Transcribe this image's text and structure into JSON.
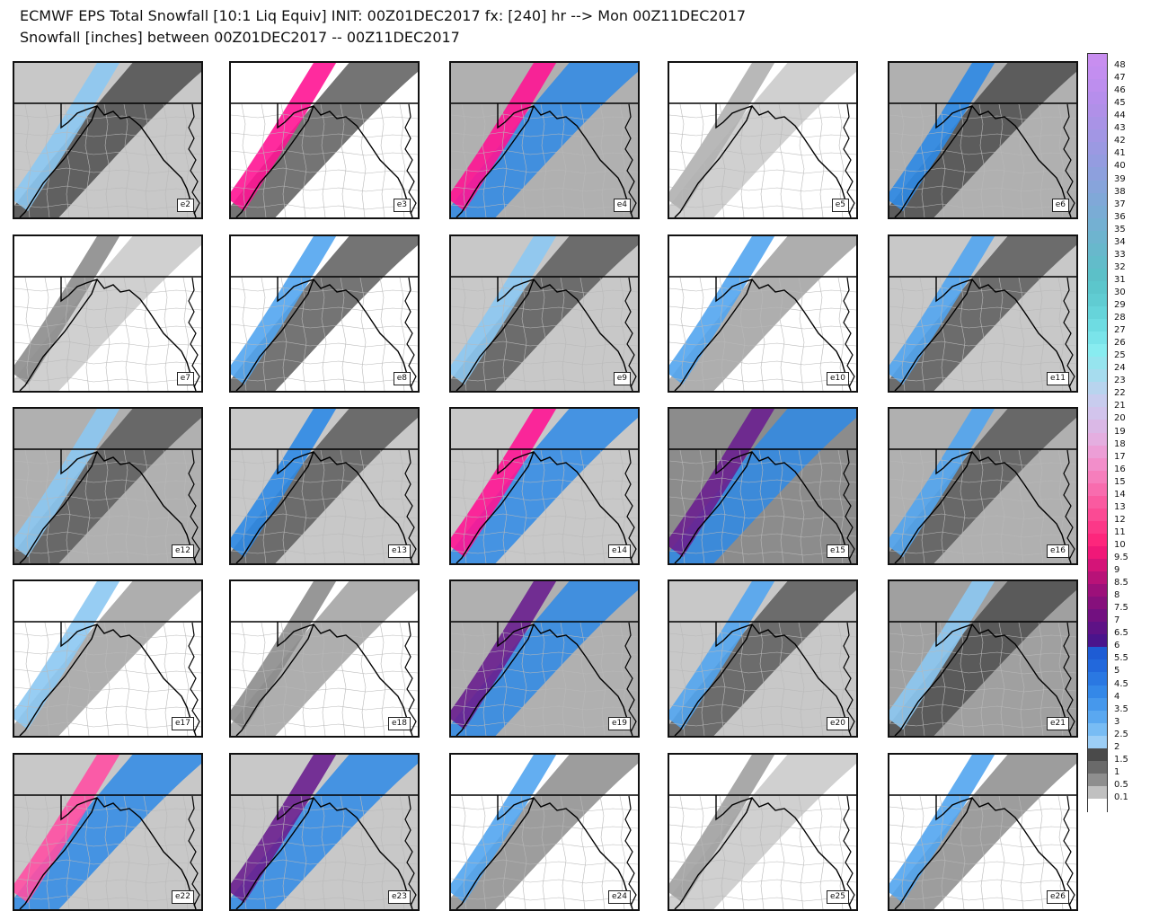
{
  "title_line1": "ECMWF EPS Total Snowfall [10:1 Liq Equiv] INIT: 00Z01DEC2017 fx: [240] hr --> Mon 00Z11DEC2017",
  "title_line2": "Snowfall [inches] between 00Z01DEC2017 -- 00Z11DEC2017",
  "members": [
    "e2",
    "e3",
    "e4",
    "e5",
    "e6",
    "e7",
    "e8",
    "e9",
    "e10",
    "e11",
    "e12",
    "e13",
    "e14",
    "e15",
    "e16",
    "e17",
    "e18",
    "e19",
    "e20",
    "e21",
    "e22",
    "e23",
    "e24",
    "e25",
    "e26"
  ],
  "member_coverage": {
    "e2": {
      "base": "#c8c8c8",
      "band": "#4d4d4d",
      "peak": "#8cc8f2"
    },
    "e3": {
      "base": "#ffffff",
      "band": "#5c5c5c",
      "peak": "#ff1493"
    },
    "e4": {
      "base": "#b0b0b0",
      "band": "#2e8ae6",
      "peak": "#ff1493"
    },
    "e5": {
      "base": "#ffffff",
      "band": "#c8c8c8",
      "peak": "#b0b0b0"
    },
    "e6": {
      "base": "#b0b0b0",
      "band": "#4d4d4d",
      "peak": "#2e8ae6"
    },
    "e7": {
      "base": "#ffffff",
      "band": "#c8c8c8",
      "peak": "#8c8c8c"
    },
    "e8": {
      "base": "#ffffff",
      "band": "#5c5c5c",
      "peak": "#52a5f0"
    },
    "e9": {
      "base": "#c8c8c8",
      "band": "#5c5c5c",
      "peak": "#8cc8f2"
    },
    "e10": {
      "base": "#ffffff",
      "band": "#a0a0a0",
      "peak": "#52a5f0"
    },
    "e11": {
      "base": "#c8c8c8",
      "band": "#5c5c5c",
      "peak": "#52a5f0"
    },
    "e12": {
      "base": "#b0b0b0",
      "band": "#5c5c5c",
      "peak": "#8cc8f2"
    },
    "e13": {
      "base": "#c8c8c8",
      "band": "#5c5c5c",
      "peak": "#2e8ae6"
    },
    "e14": {
      "base": "#c8c8c8",
      "band": "#2e8ae6",
      "peak": "#ff1493"
    },
    "e15": {
      "base": "#8c8c8c",
      "band": "#2e8ae6",
      "peak": "#6a1f8f"
    },
    "e16": {
      "base": "#b0b0b0",
      "band": "#5c5c5c",
      "peak": "#52a5f0"
    },
    "e17": {
      "base": "#ffffff",
      "band": "#a0a0a0",
      "peak": "#8cc8f2"
    },
    "e18": {
      "base": "#ffffff",
      "band": "#a0a0a0",
      "peak": "#8c8c8c"
    },
    "e19": {
      "base": "#b0b0b0",
      "band": "#2e8ae6",
      "peak": "#6a1f8f"
    },
    "e20": {
      "base": "#c8c8c8",
      "band": "#5c5c5c",
      "peak": "#52a5f0"
    },
    "e21": {
      "base": "#a0a0a0",
      "band": "#4d4d4d",
      "peak": "#8cc8f2"
    },
    "e22": {
      "base": "#c8c8c8",
      "band": "#2e8ae6",
      "peak": "#ff4fa3"
    },
    "e23": {
      "base": "#c8c8c8",
      "band": "#2e8ae6",
      "peak": "#6a1f8f"
    },
    "e24": {
      "base": "#ffffff",
      "band": "#8c8c8c",
      "peak": "#52a5f0"
    },
    "e25": {
      "base": "#ffffff",
      "band": "#c8c8c8",
      "peak": "#a0a0a0"
    },
    "e26": {
      "base": "#ffffff",
      "band": "#8c8c8c",
      "peak": "#52a5f0"
    }
  },
  "legend": [
    {
      "label": "48",
      "color": "#c88ef0"
    },
    {
      "label": "47",
      "color": "#c38ef0"
    },
    {
      "label": "46",
      "color": "#bd8eee"
    },
    {
      "label": "45",
      "color": "#b68eec"
    },
    {
      "label": "44",
      "color": "#b090e8"
    },
    {
      "label": "43",
      "color": "#a993e6"
    },
    {
      "label": "42",
      "color": "#a296e4"
    },
    {
      "label": "41",
      "color": "#9b99e2"
    },
    {
      "label": "40",
      "color": "#949ce0"
    },
    {
      "label": "39",
      "color": "#8da0dd"
    },
    {
      "label": "38",
      "color": "#87a4db"
    },
    {
      "label": "37",
      "color": "#80a8d8"
    },
    {
      "label": "36",
      "color": "#7aacd5"
    },
    {
      "label": "35",
      "color": "#74b0d2"
    },
    {
      "label": "34",
      "color": "#6eb4cf"
    },
    {
      "label": "33",
      "color": "#68b8cc"
    },
    {
      "label": "32",
      "color": "#62bcca"
    },
    {
      "label": "31",
      "color": "#5cc0c8"
    },
    {
      "label": "30",
      "color": "#5cc6cc"
    },
    {
      "label": "29",
      "color": "#60ccd2"
    },
    {
      "label": "28",
      "color": "#66d4da"
    },
    {
      "label": "27",
      "color": "#6edce2"
    },
    {
      "label": "26",
      "color": "#7ae4ea"
    },
    {
      "label": "25",
      "color": "#88ecf0"
    },
    {
      "label": "24",
      "color": "#96e4ee"
    },
    {
      "label": "23",
      "color": "#a6dcee"
    },
    {
      "label": "22",
      "color": "#b8d4ee"
    },
    {
      "label": "21",
      "color": "#c8ccee"
    },
    {
      "label": "20",
      "color": "#d2c4ec"
    },
    {
      "label": "19",
      "color": "#dab8e6"
    },
    {
      "label": "18",
      "color": "#e4aee0"
    },
    {
      "label": "17",
      "color": "#ec9ed6"
    },
    {
      "label": "16",
      "color": "#f28eca"
    },
    {
      "label": "15",
      "color": "#f67ebc"
    },
    {
      "label": "14",
      "color": "#f86cae"
    },
    {
      "label": "13",
      "color": "#fa5aa0"
    },
    {
      "label": "12",
      "color": "#fb4a94"
    },
    {
      "label": "11",
      "color": "#fc3888"
    },
    {
      "label": "10",
      "color": "#fd267c"
    },
    {
      "label": "9.5",
      "color": "#f01878"
    },
    {
      "label": "9",
      "color": "#d41478"
    },
    {
      "label": "8.5",
      "color": "#b81278"
    },
    {
      "label": "8",
      "color": "#9c107a"
    },
    {
      "label": "7.5",
      "color": "#86107c"
    },
    {
      "label": "7",
      "color": "#721080"
    },
    {
      "label": "6.5",
      "color": "#5e1286"
    },
    {
      "label": "6",
      "color": "#4a148c"
    },
    {
      "label": "5.5",
      "color": "#1e5cd4"
    },
    {
      "label": "5",
      "color": "#2268dc"
    },
    {
      "label": "4.5",
      "color": "#2a78e2"
    },
    {
      "label": "4",
      "color": "#3488e8"
    },
    {
      "label": "3.5",
      "color": "#4698ec"
    },
    {
      "label": "3",
      "color": "#5aa8f0"
    },
    {
      "label": "2.5",
      "color": "#78bcf4"
    },
    {
      "label": "2",
      "color": "#9ccef6"
    },
    {
      "label": "1.5",
      "color": "#4a4a4a"
    },
    {
      "label": "1",
      "color": "#6a6a6a"
    },
    {
      "label": "0.5",
      "color": "#8e8e8e"
    },
    {
      "label": "0.1",
      "color": "#c0c0c0"
    },
    {
      "label": "",
      "color": "#ffffff"
    }
  ]
}
